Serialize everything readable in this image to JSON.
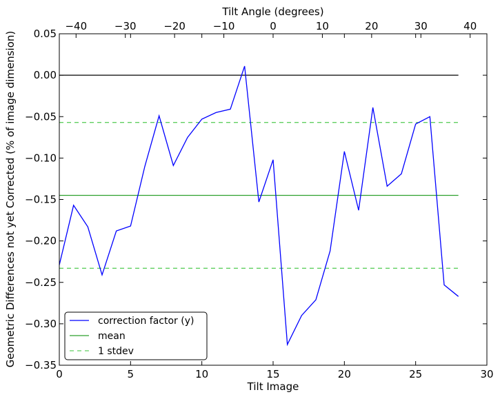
{
  "chart_data": {
    "type": "line",
    "title": "",
    "xlabel": "Tilt Image",
    "ylabel": "Geometric Differences not yet Corrected (% of image dimension)",
    "top_xlabel": "Tilt Angle (degrees)",
    "xlim": [
      0,
      30
    ],
    "ylim": [
      -0.35,
      0.05
    ],
    "top_xlim": [
      -43.4,
      43.4
    ],
    "xticks": [
      0,
      5,
      10,
      15,
      20,
      25,
      30
    ],
    "xtick_labels": [
      "0",
      "5",
      "10",
      "15",
      "20",
      "25",
      "30"
    ],
    "yticks": [
      0.05,
      0.0,
      -0.05,
      -0.1,
      -0.15,
      -0.2,
      -0.25,
      -0.3,
      -0.35
    ],
    "ytick_labels": [
      "0.05",
      "0.00",
      "−0.05",
      "−0.10",
      "−0.15",
      "−0.20",
      "−0.25",
      "−0.30",
      "−0.35"
    ],
    "top_xticks": [
      -40,
      -30,
      -20,
      -10,
      0,
      10,
      20,
      30,
      40
    ],
    "top_xtick_labels": [
      "−40",
      "−30",
      "−20",
      "−10",
      "0",
      "10",
      "20",
      "30",
      "40"
    ],
    "grid": false,
    "legend_position": "lower-left",
    "series": [
      {
        "name": "correction factor (y)",
        "style": "solid",
        "color": "#0000ff",
        "x": [
          0,
          1,
          2,
          3,
          4,
          5,
          6,
          7,
          8,
          9,
          10,
          11,
          12,
          13,
          14,
          15,
          16,
          17,
          18,
          19,
          20,
          21,
          22,
          23,
          24,
          25,
          26,
          27,
          28
        ],
        "y": [
          -0.229,
          -0.157,
          -0.183,
          -0.241,
          -0.188,
          -0.182,
          -0.11,
          -0.049,
          -0.109,
          -0.075,
          -0.053,
          -0.045,
          -0.041,
          0.011,
          -0.153,
          -0.102,
          -0.325,
          -0.29,
          -0.271,
          -0.212,
          -0.092,
          -0.163,
          -0.039,
          -0.134,
          -0.119,
          -0.059,
          -0.05,
          -0.253,
          -0.267
        ]
      },
      {
        "name": "mean",
        "style": "solid",
        "color": "#2ca02c",
        "x": [
          0,
          28
        ],
        "y": [
          -0.145,
          -0.145
        ]
      },
      {
        "name": "1 stdev",
        "style": "dashed",
        "color": "#5fcf5f",
        "x": [
          0,
          28
        ],
        "y": [
          -0.057,
          -0.057
        ]
      },
      {
        "name": "",
        "style": "dashed",
        "color": "#5fcf5f",
        "x": [
          0,
          28
        ],
        "y": [
          -0.233,
          -0.233
        ]
      },
      {
        "name": "",
        "style": "solid",
        "color": "#000000",
        "x": [
          0,
          28
        ],
        "y": [
          0.0,
          0.0
        ]
      }
    ],
    "legend": [
      "correction factor (y)",
      "mean",
      "1 stdev"
    ]
  }
}
